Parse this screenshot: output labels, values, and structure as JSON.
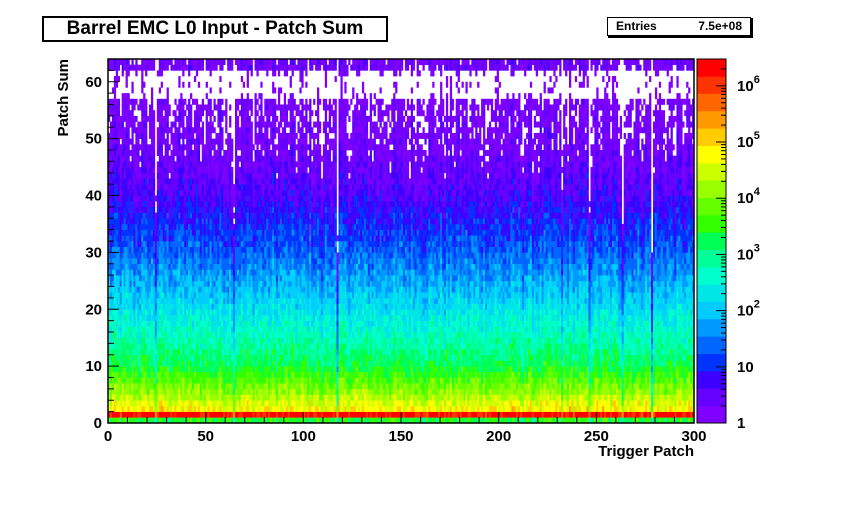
{
  "chart_data": {
    "type": "heatmap",
    "title": "Barrel EMC L0 Input - Patch Sum",
    "xlabel": "Trigger Patch",
    "ylabel": "Patch Sum",
    "xlim": [
      0,
      300
    ],
    "ylim": [
      0,
      64
    ],
    "z_scale": "log",
    "zlim": [
      1,
      3000000
    ],
    "x_ticks": [
      "0",
      "50",
      "100",
      "150",
      "200",
      "250",
      "300"
    ],
    "y_ticks": [
      "0",
      "10",
      "20",
      "30",
      "40",
      "50",
      "60"
    ],
    "z_ticks": [
      {
        "base": "1",
        "exp": ""
      },
      {
        "base": "10",
        "exp": ""
      },
      {
        "base": "10",
        "exp": "2"
      },
      {
        "base": "10",
        "exp": "3"
      },
      {
        "base": "10",
        "exp": "4"
      },
      {
        "base": "10",
        "exp": "5"
      },
      {
        "base": "10",
        "exp": "6"
      }
    ],
    "stats": {
      "label": "Entries",
      "value": "7.5e+08"
    },
    "profile": [
      {
        "sum": 0,
        "log10_count": 3.4
      },
      {
        "sum": 1,
        "log10_count": 6.3
      },
      {
        "sum": 2,
        "log10_count": 4.8
      },
      {
        "sum": 5,
        "log10_count": 4.1
      },
      {
        "sum": 10,
        "log10_count": 3.2
      },
      {
        "sum": 20,
        "log10_count": 2.2
      },
      {
        "sum": 30,
        "log10_count": 1.3
      },
      {
        "sum": 40,
        "log10_count": 0.6
      },
      {
        "sum": 50,
        "log10_count": 0.2
      },
      {
        "sum": 60,
        "log10_count": 0.1
      },
      {
        "sum": 62,
        "log10_count": 0.3
      }
    ],
    "palette": [
      "#7f00ff",
      "#6600ff",
      "#3d00ff",
      "#0033ff",
      "#0066ff",
      "#0099ff",
      "#00ccff",
      "#00e5e5",
      "#00ffcc",
      "#00ff99",
      "#00ff55",
      "#33ff00",
      "#66ff00",
      "#99ff00",
      "#ccff00",
      "#ffff00",
      "#ffcc00",
      "#ff9900",
      "#ff6600",
      "#ff3300",
      "#ff0000"
    ]
  }
}
